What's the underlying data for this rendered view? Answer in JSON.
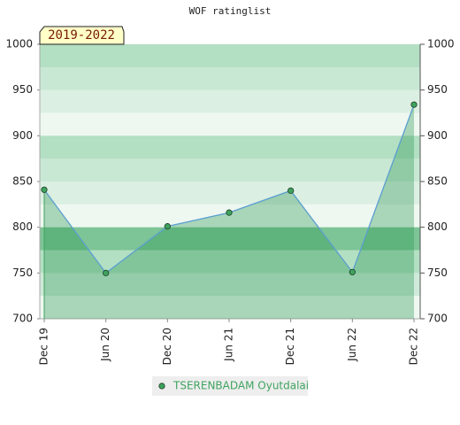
{
  "chart_data": {
    "type": "line",
    "title": "WOF ratinglist",
    "badge": "2019-2022",
    "categories": [
      "Dec 19",
      "Jun 20",
      "Dec 20",
      "Jun 21",
      "Dec 21",
      "Jun 22",
      "Dec 22"
    ],
    "series": [
      {
        "name": "TSERENBADAM Oyutdalai",
        "color": "#5b9fd0",
        "marker_color": "#3fa35f",
        "values": [
          841,
          750,
          801,
          816,
          840,
          751,
          934
        ]
      }
    ],
    "ylim": [
      700,
      1000
    ],
    "yticks": [
      700,
      750,
      800,
      850,
      900,
      950,
      1000
    ],
    "right_axis": true
  }
}
